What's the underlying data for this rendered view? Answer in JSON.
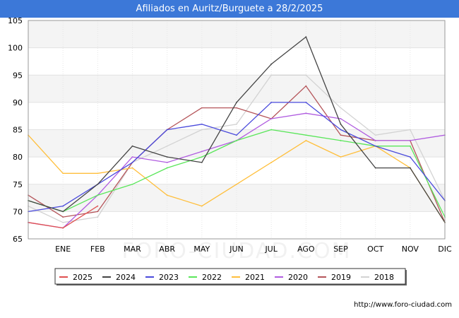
{
  "header": {
    "title": "Afiliados en Auritz/Burguete a 28/2/2025"
  },
  "footer": {
    "source": "http://www.foro-ciudad.com"
  },
  "watermark": "FORO-CIUDAD.COM",
  "chart_data": {
    "type": "line",
    "title": "Afiliados en Auritz/Burguete a 28/2/2025",
    "xlabel": "",
    "ylabel": "",
    "ylim": [
      65,
      105
    ],
    "yticks": [
      65,
      70,
      75,
      80,
      85,
      90,
      95,
      100,
      105
    ],
    "categories": [
      "",
      "ENE",
      "FEB",
      "MAR",
      "ABR",
      "MAY",
      "JUN",
      "JUL",
      "AGO",
      "SEP",
      "OCT",
      "NOV",
      "DIC"
    ],
    "grid": true,
    "legend_position": "bottom",
    "series": [
      {
        "name": "2018",
        "color": "#d3d3d3",
        "values": [
          71,
          68,
          69,
          79,
          82,
          85,
          86,
          95,
          95,
          89,
          84,
          85,
          72
        ]
      },
      {
        "name": "2019",
        "color": "#b5555a",
        "values": [
          73,
          69,
          70,
          79,
          85,
          89,
          89,
          87,
          93,
          84,
          83,
          83,
          68
        ]
      },
      {
        "name": "2020",
        "color": "#b05ce0",
        "values": [
          68,
          67,
          73,
          80,
          79,
          81,
          83,
          87,
          88,
          87,
          83,
          83,
          84
        ]
      },
      {
        "name": "2021",
        "color": "#ffbf3c",
        "values": [
          84,
          77,
          77,
          78,
          73,
          71,
          75,
          79,
          83,
          80,
          82,
          78,
          68
        ]
      },
      {
        "name": "2022",
        "color": "#5ae65a",
        "values": [
          72,
          70,
          73,
          75,
          78,
          80,
          83,
          85,
          84,
          83,
          82,
          82,
          69
        ]
      },
      {
        "name": "2023",
        "color": "#4a4adc",
        "values": [
          70,
          71,
          75,
          79,
          85,
          86,
          84,
          90,
          90,
          85,
          82,
          80,
          72
        ]
      },
      {
        "name": "2024",
        "color": "#444444",
        "values": [
          72,
          70,
          75,
          82,
          80,
          79,
          90,
          97,
          102,
          86,
          78,
          78,
          68
        ]
      },
      {
        "name": "2025",
        "color": "#e05050",
        "values": [
          68,
          67,
          71,
          null,
          null,
          null,
          null,
          null,
          null,
          null,
          null,
          null,
          null
        ]
      }
    ],
    "legend_order": [
      "2025",
      "2024",
      "2023",
      "2022",
      "2021",
      "2020",
      "2019",
      "2018"
    ]
  }
}
